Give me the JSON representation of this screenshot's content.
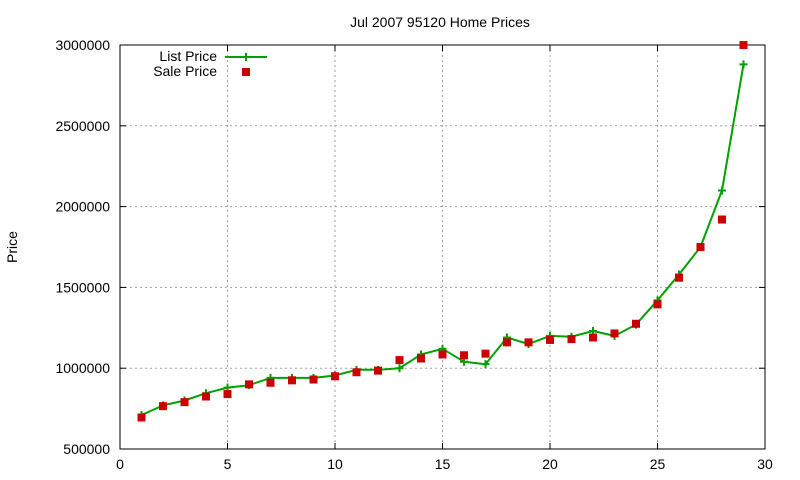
{
  "chart_data": {
    "type": "line",
    "title": "Jul 2007 95120 Home Prices",
    "xlabel": "",
    "ylabel": "Price",
    "xlim": [
      0,
      30
    ],
    "ylim": [
      500000,
      3000000
    ],
    "xticks": [
      0,
      5,
      10,
      15,
      20,
      25,
      30
    ],
    "yticks": [
      500000,
      1000000,
      1500000,
      2000000,
      2500000,
      3000000
    ],
    "grid": true,
    "legend_position": "top-left",
    "series": [
      {
        "name": "List Price",
        "style": "line-with-plus-markers",
        "color": "#00a000",
        "x": [
          1,
          2,
          3,
          4,
          5,
          6,
          7,
          8,
          9,
          10,
          11,
          12,
          13,
          14,
          15,
          16,
          17,
          18,
          19,
          20,
          21,
          22,
          23,
          24,
          25,
          26,
          27,
          28,
          29
        ],
        "y": [
          710000,
          770000,
          800000,
          845000,
          880000,
          895000,
          940000,
          940000,
          940000,
          955000,
          990000,
          990000,
          1000000,
          1085000,
          1120000,
          1040000,
          1025000,
          1190000,
          1150000,
          1200000,
          1195000,
          1230000,
          1200000,
          1270000,
          1420000,
          1580000,
          1750000,
          2100000,
          2880000
        ]
      },
      {
        "name": "Sale Price",
        "style": "square-markers",
        "color": "#cc0000",
        "x": [
          1,
          2,
          3,
          4,
          5,
          6,
          7,
          8,
          9,
          10,
          11,
          12,
          13,
          14,
          15,
          16,
          17,
          18,
          19,
          20,
          21,
          22,
          23,
          24,
          25,
          26,
          27,
          28,
          29
        ],
        "y": [
          695000,
          765000,
          790000,
          825000,
          840000,
          900000,
          910000,
          925000,
          930000,
          950000,
          975000,
          985000,
          1050000,
          1060000,
          1085000,
          1080000,
          1090000,
          1160000,
          1160000,
          1175000,
          1180000,
          1190000,
          1215000,
          1275000,
          1395000,
          1560000,
          1750000,
          1920000,
          3000000
        ]
      }
    ]
  }
}
